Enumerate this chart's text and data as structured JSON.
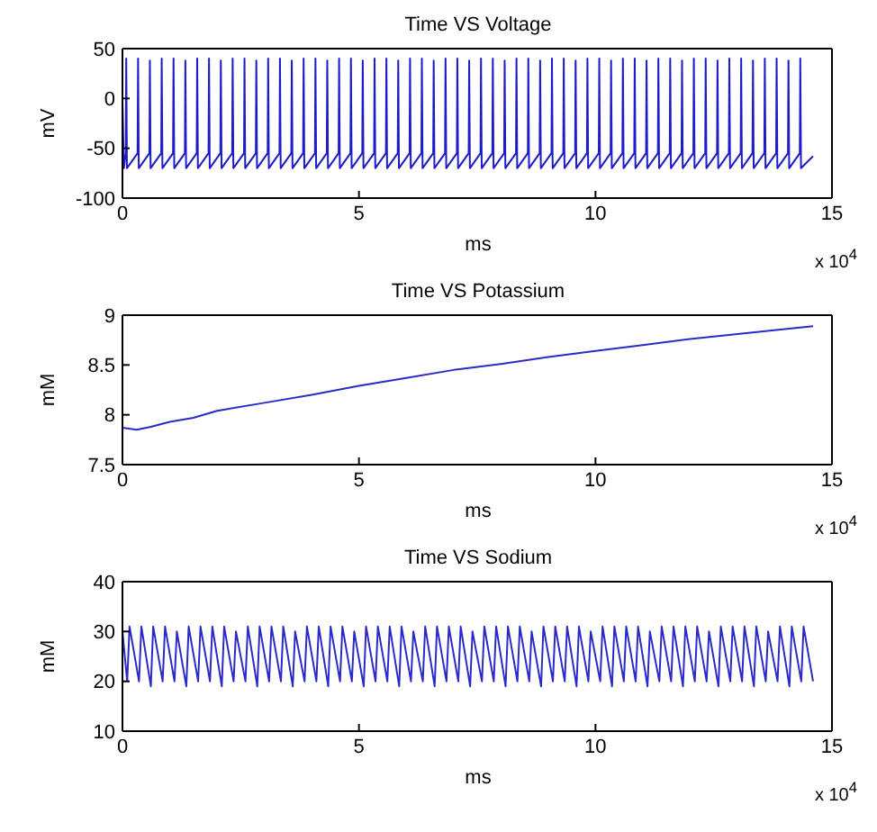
{
  "chart_data": [
    {
      "type": "line",
      "title": "Time VS Voltage",
      "xlabel": "ms",
      "ylabel": "mV",
      "xlim": [
        0,
        15
      ],
      "xticks": [
        0,
        5,
        10,
        15
      ],
      "ylim": [
        -100,
        50
      ],
      "yticks": [
        -100,
        -50,
        0,
        50
      ],
      "annotations": [
        "x 10$^{4}$"
      ],
      "series": [
        {
          "color": "#1c1cc8",
          "x": [
            0,
            0.03,
            0.07,
            0.08,
            0.095,
            0.32,
            0.33,
            0.345,
            0.57,
            0.58,
            0.595,
            0.82,
            0.83,
            0.845,
            1.07,
            1.08,
            1.095,
            1.32,
            1.33,
            1.345,
            1.57,
            1.58,
            1.595,
            1.82,
            1.83,
            1.845,
            2.07,
            2.08,
            2.095,
            2.32,
            2.33,
            2.345,
            2.57,
            2.58,
            2.595,
            2.82,
            2.83,
            2.845,
            3.07,
            3.08,
            3.095,
            3.32,
            3.33,
            3.345,
            3.57,
            3.58,
            3.595,
            3.82,
            3.83,
            3.845,
            4.07,
            4.08,
            4.095,
            4.32,
            4.33,
            4.345,
            4.57,
            4.58,
            4.595,
            4.82,
            4.83,
            4.845,
            5.07,
            5.08,
            5.095,
            5.32,
            5.33,
            5.345,
            5.57,
            5.58,
            5.595,
            5.82,
            5.83,
            5.845,
            6.07,
            6.08,
            6.095,
            6.32,
            6.33,
            6.345,
            6.57,
            6.58,
            6.595,
            6.82,
            6.83,
            6.845,
            7.07,
            7.08,
            7.095,
            7.32,
            7.33,
            7.345,
            7.57,
            7.58,
            7.595,
            7.82,
            7.83,
            7.845,
            8.07,
            8.08,
            8.095,
            8.32,
            8.33,
            8.345,
            8.57,
            8.58,
            8.595,
            8.82,
            8.83,
            8.845,
            9.07,
            9.08,
            9.095,
            9.32,
            9.33,
            9.345,
            9.57,
            9.58,
            9.595,
            9.82,
            9.83,
            9.845,
            10.07,
            10.08,
            10.095,
            10.32,
            10.33,
            10.345,
            10.57,
            10.58,
            10.595,
            10.82,
            10.83,
            10.845,
            11.07,
            11.08,
            11.095,
            11.32,
            11.33,
            11.345,
            11.57,
            11.58,
            11.595,
            11.82,
            11.83,
            11.845,
            12.07,
            12.08,
            12.095,
            12.32,
            12.33,
            12.345,
            12.57,
            12.58,
            12.595,
            12.82,
            12.83,
            12.845,
            13.07,
            13.08,
            13.095,
            13.32,
            13.33,
            13.345,
            13.57,
            13.58,
            13.595,
            13.82,
            13.83,
            13.845,
            14.07,
            14.08,
            14.095,
            14.32,
            14.33,
            14.345,
            14.6
          ],
          "values": [
            0,
            -70,
            -55,
            40,
            -70,
            -55,
            40,
            -70,
            -55,
            38,
            -70,
            -55,
            40,
            -70,
            -55,
            40,
            -70,
            -55,
            38,
            -70,
            -55,
            40,
            -70,
            -55,
            40,
            -70,
            -55,
            38,
            -70,
            -55,
            40,
            -70,
            -55,
            40,
            -70,
            -55,
            38,
            -70,
            -55,
            40,
            -70,
            -55,
            40,
            -70,
            -55,
            38,
            -70,
            -55,
            40,
            -70,
            -55,
            40,
            -70,
            -55,
            38,
            -70,
            -55,
            40,
            -70,
            -55,
            40,
            -70,
            -55,
            38,
            -70,
            -55,
            40,
            -70,
            -55,
            40,
            -70,
            -55,
            38,
            -70,
            -55,
            40,
            -70,
            -55,
            40,
            -70,
            -55,
            38,
            -70,
            -55,
            40,
            -70,
            -55,
            40,
            -70,
            -55,
            38,
            -70,
            -55,
            40,
            -70,
            -55,
            40,
            -70,
            -55,
            38,
            -70,
            -55,
            40,
            -70,
            -55,
            40,
            -70,
            -55,
            38,
            -70,
            -55,
            40,
            -70,
            -55,
            40,
            -70,
            -55,
            38,
            -70,
            -55,
            40,
            -70,
            -55,
            40,
            -70,
            -55,
            38,
            -70,
            -55,
            40,
            -70,
            -55,
            40,
            -70,
            -55,
            38,
            -70,
            -55,
            40,
            -70,
            -55,
            40,
            -70,
            -55,
            38,
            -70,
            -55,
            40,
            -70,
            -55,
            40,
            -70,
            -55,
            38,
            -70,
            -55,
            40,
            -70,
            -55,
            40,
            -70,
            -55,
            38,
            -70,
            -55,
            40,
            -70,
            -55,
            40,
            -70,
            -55,
            38,
            -70,
            -55,
            40,
            -70,
            -58
          ]
        }
      ]
    },
    {
      "type": "line",
      "title": "Time VS Potassium",
      "xlabel": "ms",
      "ylabel": "mM",
      "xlim": [
        0,
        15
      ],
      "xticks": [
        0,
        5,
        10,
        15
      ],
      "ylim": [
        7.5,
        9
      ],
      "yticks": [
        7.5,
        8,
        8.5,
        9
      ],
      "annotations": [
        "x 10$^{4}$"
      ],
      "series": [
        {
          "color": "#2a2ac8",
          "x": [
            0,
            0.3,
            0.6,
            1,
            1.5,
            2,
            3,
            4,
            5,
            6,
            7,
            8,
            9,
            10,
            11,
            12,
            13,
            14,
            14.6
          ],
          "values": [
            7.87,
            7.85,
            7.88,
            7.93,
            7.97,
            8.04,
            8.12,
            8.2,
            8.29,
            8.37,
            8.45,
            8.51,
            8.58,
            8.64,
            8.7,
            8.76,
            8.81,
            8.86,
            8.89
          ]
        }
      ]
    },
    {
      "type": "line",
      "title": "Time VS Sodium",
      "xlabel": "ms",
      "ylabel": "mM",
      "xlim": [
        0,
        15
      ],
      "xticks": [
        0,
        5,
        10,
        15
      ],
      "ylim": [
        10,
        40
      ],
      "yticks": [
        10,
        20,
        30,
        40
      ],
      "annotations": [
        "x 10$^{4}$"
      ],
      "series": [
        {
          "color": "#2a2ac8",
          "x": [
            0,
            0.1,
            0.15,
            0.35,
            0.4,
            0.6,
            0.65,
            0.85,
            0.9,
            1.1,
            1.15,
            1.35,
            1.4,
            1.6,
            1.65,
            1.85,
            1.9,
            2.1,
            2.15,
            2.35,
            2.4,
            2.6,
            2.65,
            2.85,
            2.9,
            3.1,
            3.15,
            3.35,
            3.4,
            3.6,
            3.65,
            3.85,
            3.9,
            4.1,
            4.15,
            4.35,
            4.4,
            4.6,
            4.65,
            4.85,
            4.9,
            5.1,
            5.15,
            5.35,
            5.4,
            5.6,
            5.65,
            5.85,
            5.9,
            6.1,
            6.15,
            6.35,
            6.4,
            6.6,
            6.65,
            6.85,
            6.9,
            7.1,
            7.15,
            7.35,
            7.4,
            7.6,
            7.65,
            7.85,
            7.9,
            8.1,
            8.15,
            8.35,
            8.4,
            8.6,
            8.65,
            8.85,
            8.9,
            9.1,
            9.15,
            9.35,
            9.4,
            9.6,
            9.65,
            9.85,
            9.9,
            10.1,
            10.15,
            10.35,
            10.4,
            10.6,
            10.65,
            10.85,
            10.9,
            11.1,
            11.15,
            11.35,
            11.4,
            11.6,
            11.65,
            11.85,
            11.9,
            12.1,
            12.15,
            12.35,
            12.4,
            12.6,
            12.65,
            12.85,
            12.9,
            13.1,
            13.15,
            13.35,
            13.4,
            13.6,
            13.65,
            13.85,
            13.9,
            14.1,
            14.15,
            14.35,
            14.4,
            14.6
          ],
          "values": [
            30,
            20,
            31,
            20,
            31,
            19,
            31,
            20,
            31,
            20,
            30,
            19,
            31,
            20,
            31,
            20,
            31,
            19,
            31,
            20,
            30,
            20,
            31,
            19,
            31,
            20,
            31,
            20,
            31,
            19,
            30,
            20,
            31,
            20,
            31,
            19,
            31,
            20,
            31,
            20,
            30,
            19,
            31,
            20,
            31,
            20,
            31,
            19,
            31,
            20,
            30,
            20,
            31,
            19,
            31,
            20,
            31,
            20,
            31,
            19,
            30,
            20,
            31,
            20,
            31,
            19,
            31,
            20,
            31,
            20,
            30,
            19,
            31,
            20,
            31,
            20,
            31,
            19,
            31,
            20,
            30,
            20,
            31,
            19,
            31,
            20,
            31,
            20,
            31,
            19,
            30,
            20,
            31,
            20,
            31,
            19,
            31,
            20,
            31,
            20,
            30,
            19,
            31,
            20,
            31,
            20,
            31,
            19,
            31,
            20,
            30,
            20,
            31,
            19,
            31,
            20,
            31,
            20
          ]
        }
      ]
    }
  ]
}
